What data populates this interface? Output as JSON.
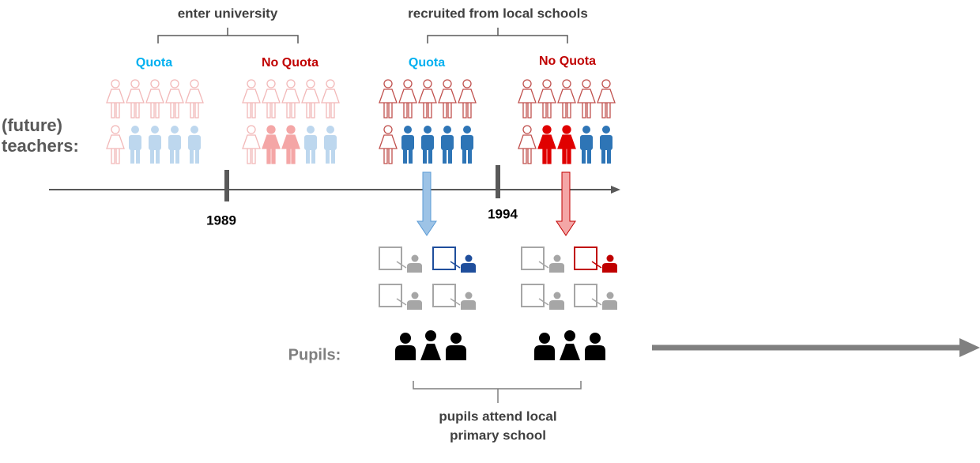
{
  "brackets": {
    "enter": "enter university",
    "recruited": "recruited from local schools",
    "attend": [
      "pupils attend local",
      "primary school"
    ]
  },
  "groups": [
    {
      "label": "Quota"
    },
    {
      "label": "No Quota"
    },
    {
      "label": "Quota"
    },
    {
      "label": "No Quota"
    }
  ],
  "row_label": [
    "(future)",
    "teachers:"
  ],
  "timeline": {
    "years": [
      "1989",
      "1994"
    ]
  },
  "pupils_label": "Pupils:"
}
